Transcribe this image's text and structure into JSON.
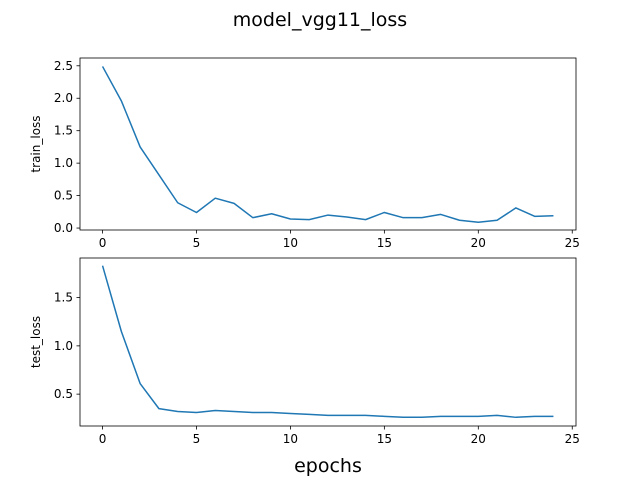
{
  "figure": {
    "title": "model_vgg11_loss",
    "xlabel": "epochs"
  },
  "colors": {
    "line": "#1f77b4",
    "axes": "#000000",
    "background": "#ffffff"
  },
  "chart_data": [
    {
      "type": "line",
      "ylabel": "train_loss",
      "xlim": [
        -1.2,
        25.2
      ],
      "ylim": [
        -0.03,
        2.62
      ],
      "xticks": [
        0,
        5,
        10,
        15,
        20,
        25
      ],
      "yticks": [
        "0.0",
        "0.5",
        "1.0",
        "1.5",
        "2.0",
        "2.5"
      ],
      "x": [
        0,
        1,
        2,
        3,
        4,
        5,
        6,
        7,
        8,
        9,
        10,
        11,
        12,
        13,
        14,
        15,
        16,
        17,
        18,
        19,
        20,
        21,
        22,
        23,
        24
      ],
      "series": [
        {
          "values": [
            2.49,
            1.96,
            1.25,
            0.82,
            0.39,
            0.24,
            0.46,
            0.38,
            0.16,
            0.22,
            0.14,
            0.13,
            0.2,
            0.17,
            0.13,
            0.24,
            0.16,
            0.16,
            0.21,
            0.12,
            0.09,
            0.12,
            0.31,
            0.18,
            0.19
          ]
        }
      ],
      "grid": false
    },
    {
      "type": "line",
      "ylabel": "test_loss",
      "xlim": [
        -1.2,
        25.2
      ],
      "ylim": [
        0.17,
        1.91
      ],
      "xticks": [
        0,
        5,
        10,
        15,
        20,
        25
      ],
      "yticks": [
        "0.5",
        "1.0",
        "1.5"
      ],
      "x": [
        0,
        1,
        2,
        3,
        4,
        5,
        6,
        7,
        8,
        9,
        10,
        11,
        12,
        13,
        14,
        15,
        16,
        17,
        18,
        19,
        20,
        21,
        22,
        23,
        24
      ],
      "series": [
        {
          "values": [
            1.83,
            1.15,
            0.61,
            0.35,
            0.32,
            0.31,
            0.33,
            0.32,
            0.31,
            0.31,
            0.3,
            0.29,
            0.28,
            0.28,
            0.28,
            0.27,
            0.26,
            0.26,
            0.27,
            0.27,
            0.27,
            0.28,
            0.26,
            0.27,
            0.27
          ]
        }
      ],
      "grid": false
    }
  ]
}
